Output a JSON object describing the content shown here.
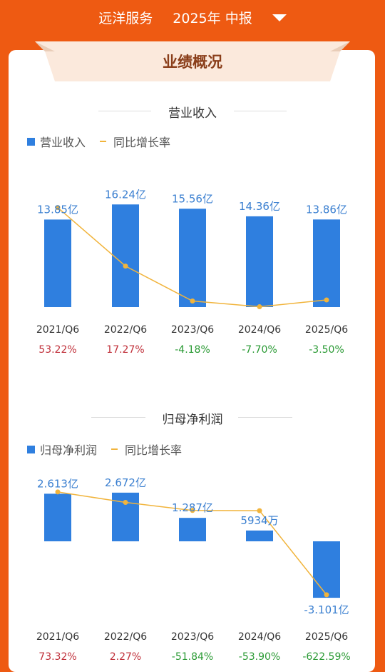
{
  "header": {
    "company": "远洋服务",
    "period": "2025年 中报",
    "caret_icon": "caret-down-icon"
  },
  "card_title": "业绩概况",
  "colors": {
    "bar": "#2f7fdf",
    "line": "#f1b43c",
    "positive": "#c0303a",
    "negative": "#2a9a34",
    "accent": "#ee5a12"
  },
  "chart_data": [
    {
      "type": "bar",
      "title": "营业收入",
      "legend": {
        "bar_label": "营业收入",
        "line_label": "同比增长率"
      },
      "categories": [
        "2021/Q6",
        "2022/Q6",
        "2023/Q6",
        "2024/Q6",
        "2025/Q6"
      ],
      "series": [
        {
          "name": "营业收入",
          "unit": "亿",
          "values": [
            13.85,
            16.24,
            15.56,
            14.36,
            13.86
          ],
          "labels": [
            "13.85亿",
            "16.24亿",
            "15.56亿",
            "14.36亿",
            "13.86亿"
          ]
        },
        {
          "name": "同比增长率",
          "type": "line",
          "unit": "%",
          "values": [
            53.22,
            17.27,
            -4.18,
            -7.7,
            -3.5
          ],
          "labels": [
            "53.22%",
            "17.27%",
            "-4.18%",
            "-7.70%",
            "-3.50%"
          ]
        }
      ]
    },
    {
      "type": "bar",
      "title": "归母净利润",
      "legend": {
        "bar_label": "归母净利润",
        "line_label": "同比增长率"
      },
      "categories": [
        "2021/Q6",
        "2022/Q6",
        "2023/Q6",
        "2024/Q6",
        "2025/Q6"
      ],
      "series": [
        {
          "name": "归母净利润",
          "unit": "亿",
          "values": [
            2.613,
            2.672,
            1.287,
            0.5934,
            -3.101
          ],
          "labels": [
            "2.613亿",
            "2.672亿",
            "1.287亿",
            "5934万",
            "-3.101亿"
          ]
        },
        {
          "name": "同比增长率",
          "type": "line",
          "unit": "%",
          "values": [
            73.32,
            2.27,
            -51.84,
            -53.9,
            -622.59
          ],
          "labels": [
            "73.32%",
            "2.27%",
            "-51.84%",
            "-53.90%",
            "-622.59%"
          ]
        }
      ]
    }
  ]
}
